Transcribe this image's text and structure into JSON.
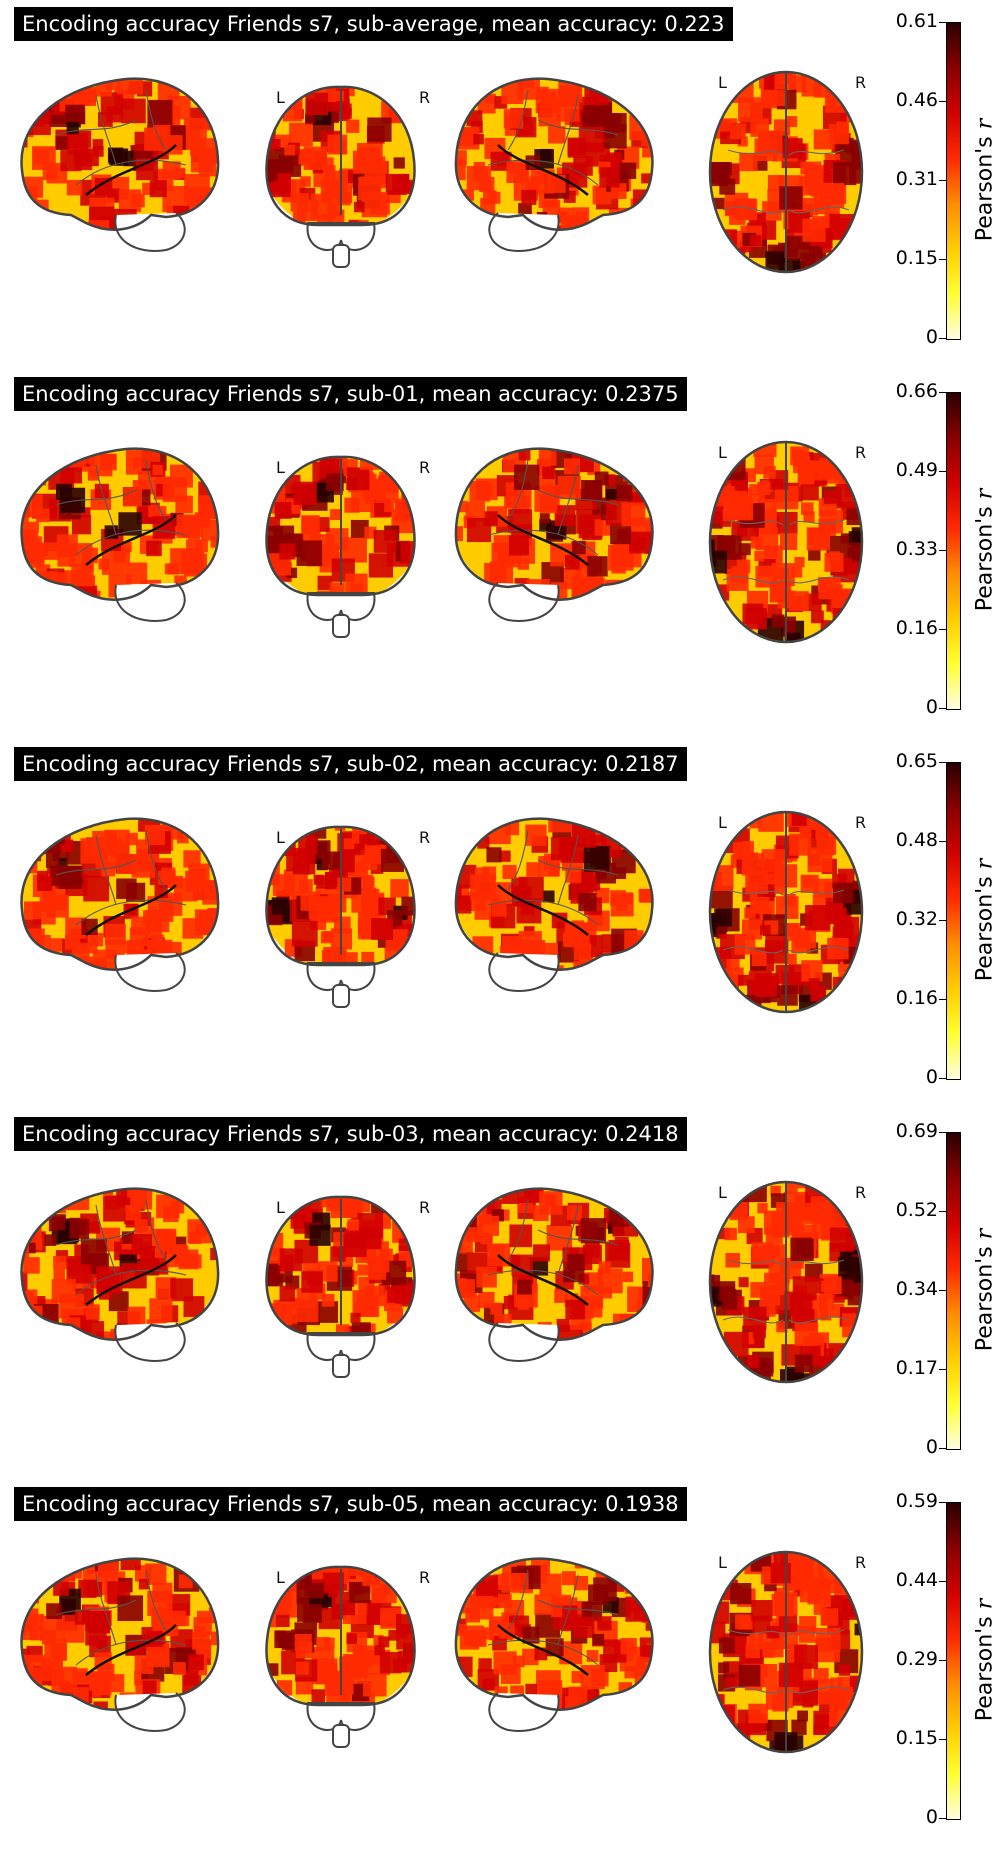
{
  "colorbar_label": "Pearson's",
  "colorbar_label_var": "r",
  "colormap": [
    "#fffde0",
    "#ffff33",
    "#ffcc00",
    "#ff8c00",
    "#ff2a00",
    "#d00000",
    "#8a0000",
    "#2a0000"
  ],
  "panels": [
    {
      "title": "Encoding accuracy Friends s7, sub-average, mean accuracy: 0.223",
      "ticks": [
        "0.61",
        "0.46",
        "0.31",
        "0.15",
        "0"
      ],
      "vmax": 0.61,
      "side_labels": [
        "L",
        "R",
        "L",
        "R"
      ]
    },
    {
      "title": "Encoding accuracy Friends s7, sub-01, mean accuracy: 0.2375",
      "ticks": [
        "0.66",
        "0.49",
        "0.33",
        "0.16",
        "0"
      ],
      "vmax": 0.66,
      "side_labels": [
        "L",
        "R",
        "L",
        "R"
      ]
    },
    {
      "title": "Encoding accuracy Friends s7, sub-02, mean accuracy: 0.2187",
      "ticks": [
        "0.65",
        "0.48",
        "0.32",
        "0.16",
        "0"
      ],
      "vmax": 0.65,
      "side_labels": [
        "L",
        "R",
        "L",
        "R"
      ]
    },
    {
      "title": "Encoding accuracy Friends s7, sub-03, mean accuracy: 0.2418",
      "ticks": [
        "0.69",
        "0.52",
        "0.34",
        "0.17",
        "0"
      ],
      "vmax": 0.69,
      "side_labels": [
        "L",
        "R",
        "L",
        "R"
      ]
    },
    {
      "title": "Encoding accuracy Friends s7, sub-05, mean accuracy: 0.1938",
      "ticks": [
        "0.59",
        "0.44",
        "0.29",
        "0.15",
        "0"
      ],
      "vmax": 0.59,
      "side_labels": [
        "L",
        "R",
        "L",
        "R"
      ]
    }
  ]
}
